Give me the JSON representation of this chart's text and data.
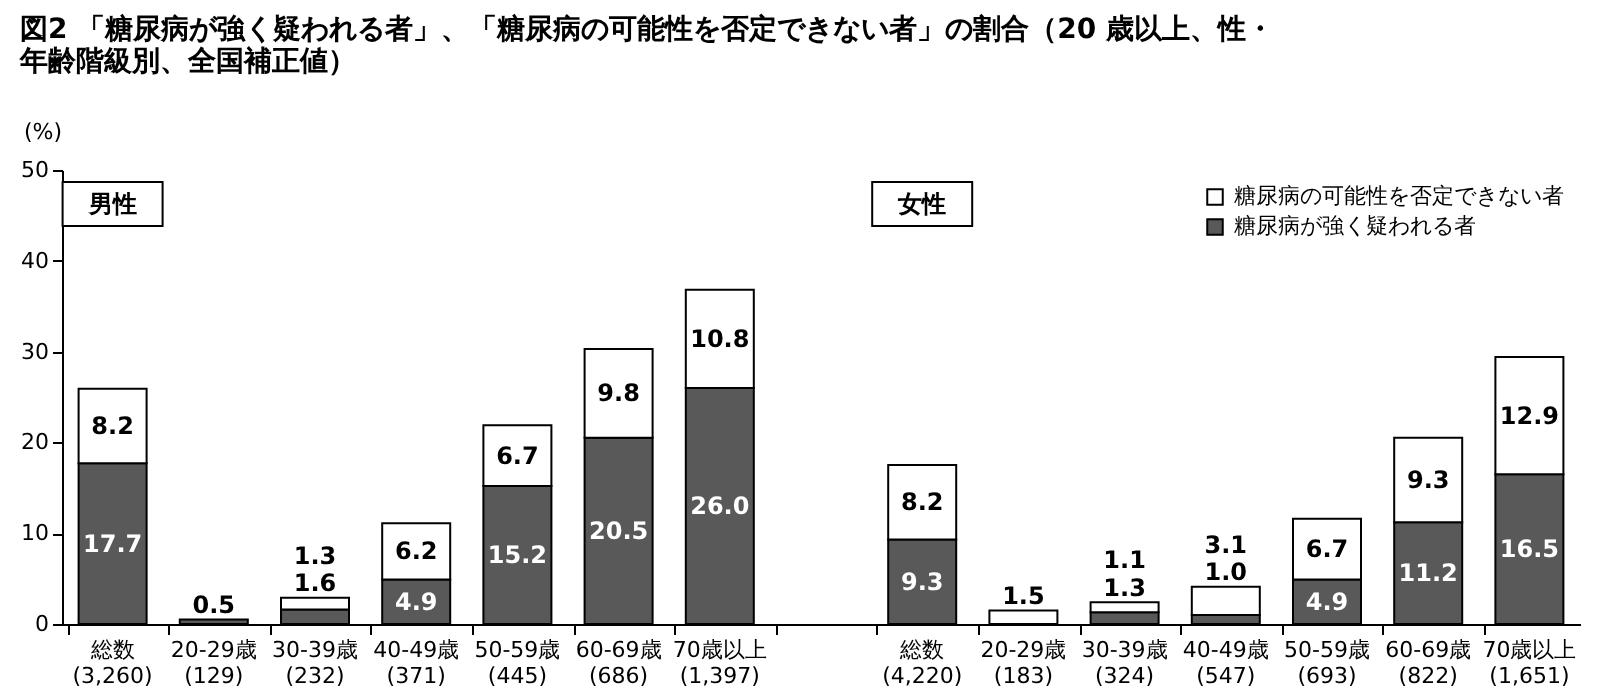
{
  "chart_data": {
    "type": "bar",
    "stacked": true,
    "title": [
      "図2 「糖尿病が強く疑われる者」、「糖尿病の可能性を否定できない者」の割合（20 歳以上、性・",
      "年齢階級別、全国補正値）"
    ],
    "ylabel": "(%)",
    "categories": [
      "総数\n(3,260)",
      "20-29歳\n(129)",
      "30-39歳\n(232)",
      "40-49歳\n(371)",
      "50-59歳\n(445)",
      "60-69歳\n(686)",
      "70歳以上\n(1,397)",
      null,
      "総数\n(4,220)",
      "20-29歳\n(183)",
      "30-39歳\n(324)",
      "40-49歳\n(547)",
      "50-59歳\n(693)",
      "60-69歳\n(822)",
      "70歳以上\n(1,651)"
    ],
    "series": [
      {
        "name": "糖尿病が強く疑われる者",
        "color": "#595959",
        "values": [
          17.7,
          0.5,
          1.6,
          4.9,
          15.2,
          20.5,
          26.0,
          null,
          9.3,
          null,
          1.3,
          1.0,
          4.9,
          11.2,
          16.5
        ],
        "value_labels": [
          "17.7",
          "0.5",
          "1.6",
          "4.9",
          "15.2",
          "20.5",
          "26.0",
          null,
          "9.3",
          null,
          "1.3",
          "1.0",
          "4.9",
          "11.2",
          "16.5"
        ]
      },
      {
        "name": "糖尿病の可能性を否定できない者",
        "color": "#ffffff",
        "values": [
          8.2,
          null,
          1.3,
          6.2,
          6.7,
          9.8,
          10.8,
          null,
          8.2,
          1.5,
          1.1,
          3.1,
          6.7,
          9.3,
          12.9
        ],
        "value_labels": [
          "8.2",
          null,
          "1.3",
          "6.2",
          "6.7",
          "9.8",
          "10.8",
          null,
          "8.2",
          "1.5",
          "1.1",
          "3.1",
          "6.7",
          "9.3",
          "12.9"
        ]
      }
    ],
    "ylim": [
      0,
      50
    ],
    "yticks": [
      0,
      10,
      20,
      30,
      40,
      50
    ],
    "grid": false,
    "legend": "top right",
    "annotations": [
      "男性",
      "女性"
    ]
  }
}
